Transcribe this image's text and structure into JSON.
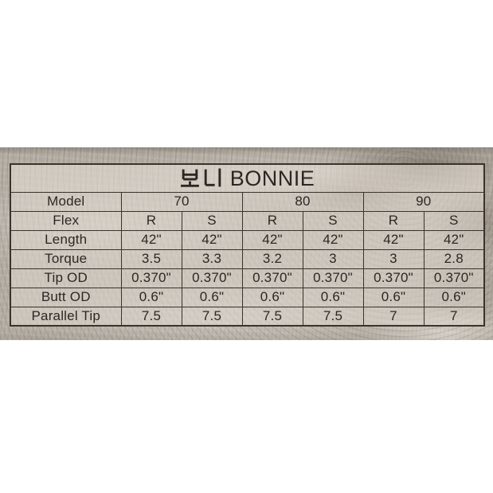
{
  "title": {
    "full": "보니 BONNIE",
    "korean": "보니",
    "latin": "BONNIE"
  },
  "spec_table": {
    "model_label": "Model",
    "models": [
      "70",
      "80",
      "90"
    ],
    "flex_label": "Flex",
    "flex": [
      "R",
      "S",
      "R",
      "S",
      "R",
      "S"
    ],
    "rows": [
      {
        "label": "Length",
        "values": [
          "42\"",
          "42\"",
          "42\"",
          "42\"",
          "42\"",
          "42\""
        ]
      },
      {
        "label": "Torque",
        "values": [
          "3.5",
          "3.3",
          "3.2",
          "3",
          "3",
          "2.8"
        ]
      },
      {
        "label": "Tip OD",
        "values": [
          "0.370\"",
          "0.370\"",
          "0.370\"",
          "0.370\"",
          "0.370\"",
          "0.370\""
        ]
      },
      {
        "label": "Butt OD",
        "values": [
          "0.6\"",
          "0.6\"",
          "0.6\"",
          "0.6\"",
          "0.6\"",
          "0.6\""
        ]
      },
      {
        "label": "Parallel Tip",
        "values": [
          "7.5",
          "7.5",
          "7.5",
          "7.5",
          "7",
          "7"
        ]
      }
    ]
  },
  "colors": {
    "page_bg": "#ffffff",
    "band_base": "#b6afa5",
    "border": "#38332c",
    "text": "#2b2723"
  }
}
